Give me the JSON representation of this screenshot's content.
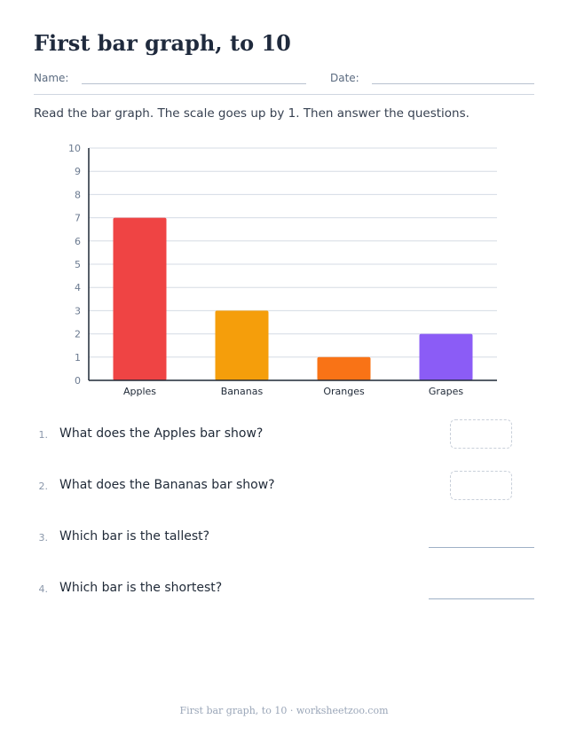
{
  "worksheet": {
    "title": "First bar graph, to 10",
    "name_label": "Name:",
    "date_label": "Date:",
    "instructions": "Read the bar graph. The scale goes up by 1. Then answer the questions."
  },
  "chart_data": {
    "type": "bar",
    "categories": [
      "Apples",
      "Bananas",
      "Oranges",
      "Grapes"
    ],
    "values": [
      7,
      3,
      1,
      2
    ],
    "colors": [
      "#ef4444",
      "#f59e0b",
      "#f97316",
      "#8b5cf6"
    ],
    "ylim": [
      0,
      10
    ],
    "yticks": [
      "0",
      "1",
      "2",
      "3",
      "4",
      "5",
      "6",
      "7",
      "8",
      "9",
      "10"
    ],
    "grid": true,
    "title": "",
    "xlabel": "",
    "ylabel": ""
  },
  "questions": [
    {
      "number": "1.",
      "text": "What does the Apples bar show?",
      "answer_type": "box"
    },
    {
      "number": "2.",
      "text": "What does the Bananas bar show?",
      "answer_type": "box"
    },
    {
      "number": "3.",
      "text": "Which bar is the tallest?",
      "answer_type": "line"
    },
    {
      "number": "4.",
      "text": "Which bar is the shortest?",
      "answer_type": "line"
    }
  ],
  "footer": "First bar graph, to 10 · worksheetzoo.com"
}
